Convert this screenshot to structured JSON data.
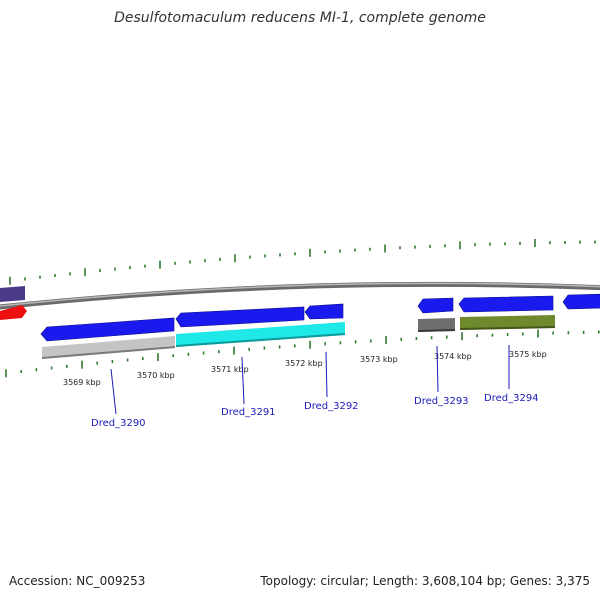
{
  "title": "Desulfotomaculum reducens MI-1, complete genome",
  "footer": {
    "accession": "Accession: NC_009253",
    "summary": "Topology: circular; Length: 3,608,104 bp; Genes: 3,375"
  },
  "colors": {
    "backbone": "#8a8a8a",
    "tick": "#2f7a2f",
    "gene_label": "#1a1ab8",
    "cds_blue": "#1a1aee",
    "cyan": "#1ee8e8",
    "light_gray": "#c4c4c4",
    "dark_gray": "#6e6e6e",
    "olive": "#6e8a2c",
    "purple": "#4a3a88",
    "red": "#ee1010"
  },
  "tick_labels": [
    "3569 kbp",
    "3570 kbp",
    "3571 kbp",
    "3572 kbp",
    "3573 kbp",
    "3574 kbp",
    "3575 kbp"
  ],
  "genes": [
    "Dred_3290",
    "Dred_3291",
    "Dred_3292",
    "Dred_3293",
    "Dred_3294"
  ]
}
